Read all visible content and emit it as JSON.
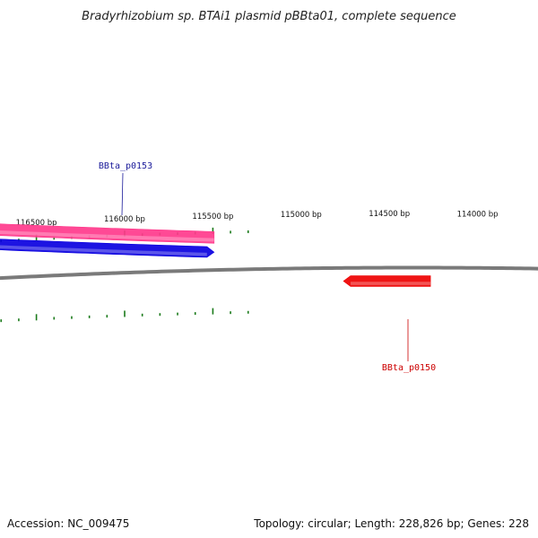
{
  "title": "Bradyrhizobium sp. BTAi1 plasmid pBBta01, complete sequence",
  "footer": {
    "accession": "Accession: NC_009475",
    "info": "Topology: circular; Length: 228,826 bp; Genes: 228"
  },
  "colors": {
    "tick": "#1a7a1a",
    "backbone": "#7a7a7a",
    "gene_pink": "#ff3a8c",
    "gene_blue": "#0a00e0",
    "gene_red": "#ee0000",
    "label_blue": "#1a1a9a",
    "label_red": "#cc0000"
  },
  "scale": {
    "tick_labels": [
      {
        "bp": 116500,
        "text": "116500 bp"
      },
      {
        "bp": 116000,
        "text": "116000 bp"
      },
      {
        "bp": 115500,
        "text": "115500 bp"
      },
      {
        "bp": 115000,
        "text": "115000 bp"
      },
      {
        "bp": 114500,
        "text": "114500 bp"
      },
      {
        "bp": 114000,
        "text": "114000 bp"
      }
    ]
  },
  "genes": [
    {
      "id": "pink",
      "color_key": "gene_pink",
      "start_bp": 115493,
      "end_bp": 116776,
      "strand": "none",
      "lane": "top"
    },
    {
      "id": "blue",
      "color_key": "gene_blue",
      "start_bp": 115493,
      "end_bp": 116776,
      "strand": "reverse",
      "lane": "upper",
      "label": "BBta_p0153",
      "label_color_key": "label_blue"
    },
    {
      "id": "red",
      "color_key": "gene_red",
      "start_bp": 114267,
      "end_bp": 114760,
      "strand": "forward",
      "lane": "lower",
      "label": "BBta_p0150",
      "label_color_key": "label_red"
    }
  ]
}
